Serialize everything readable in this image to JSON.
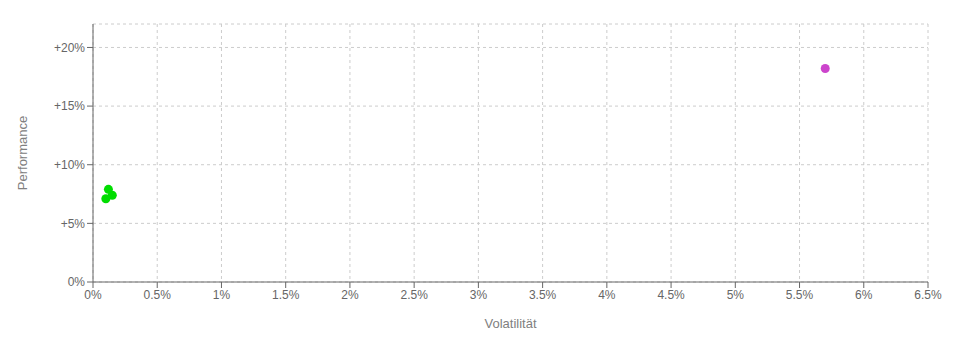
{
  "chart_data": {
    "type": "scatter",
    "xlabel": "Volatilität",
    "ylabel": "Performance",
    "xlim": [
      0.0,
      0.065
    ],
    "ylim": [
      0.0,
      0.22
    ],
    "xticks": [
      {
        "value": 0.0,
        "label": "0%"
      },
      {
        "value": 0.005,
        "label": "0.5%"
      },
      {
        "value": 0.01,
        "label": "1%"
      },
      {
        "value": 0.015,
        "label": "1.5%"
      },
      {
        "value": 0.02,
        "label": "2%"
      },
      {
        "value": 0.025,
        "label": "2.5%"
      },
      {
        "value": 0.03,
        "label": "3%"
      },
      {
        "value": 0.035,
        "label": "3.5%"
      },
      {
        "value": 0.04,
        "label": "4%"
      },
      {
        "value": 0.045,
        "label": "4.5%"
      },
      {
        "value": 0.05,
        "label": "5%"
      },
      {
        "value": 0.055,
        "label": "5.5%"
      },
      {
        "value": 0.06,
        "label": "6%"
      },
      {
        "value": 0.065,
        "label": "6.5%"
      }
    ],
    "yticks": [
      {
        "value": 0.0,
        "label": "0%"
      },
      {
        "value": 0.05,
        "label": "+5%"
      },
      {
        "value": 0.1,
        "label": "+10%"
      },
      {
        "value": 0.15,
        "label": "+15%"
      },
      {
        "value": 0.2,
        "label": "+20%"
      }
    ],
    "grid": true,
    "series": [
      {
        "color": "#00dd00",
        "x": [
          0.0012,
          0.0015,
          0.001
        ],
        "values": [
          0.079,
          0.074,
          0.071
        ]
      },
      {
        "color": "#cc44cc",
        "x": [
          0.057
        ],
        "values": [
          0.182
        ]
      }
    ]
  }
}
